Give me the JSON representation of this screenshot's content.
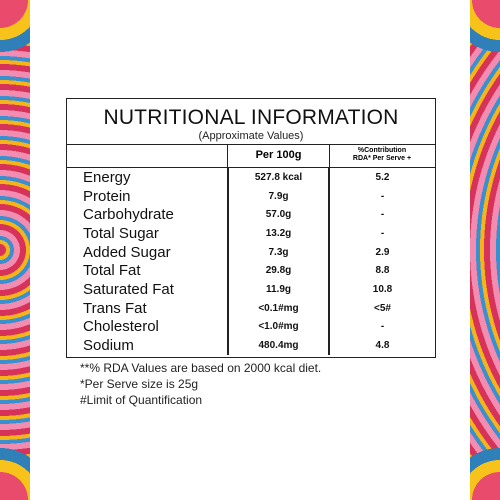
{
  "table": {
    "title": "NUTRITIONAL INFORMATION",
    "subtitle": "(Approximate Values)",
    "col_per100": "Per 100g",
    "col_rda_line1": "%Contribution",
    "col_rda_line2": "RDA* Per Serve +",
    "rows": [
      {
        "name": "Energy",
        "per100": "527.8 kcal",
        "rda": "5.2"
      },
      {
        "name": "Protein",
        "per100": "7.9g",
        "rda": "-"
      },
      {
        "name": "Carbohydrate",
        "per100": "57.0g",
        "rda": "-"
      },
      {
        "name": "Total Sugar",
        "per100": "13.2g",
        "rda": "-"
      },
      {
        "name": "Added Sugar",
        "per100": "7.3g",
        "rda": "2.9"
      },
      {
        "name": "Total Fat",
        "per100": "29.8g",
        "rda": "8.8"
      },
      {
        "name": "Saturated Fat",
        "per100": "11.9g",
        "rda": "10.8"
      },
      {
        "name": "Trans Fat",
        "per100": "<0.1#mg",
        "rda": "<5#"
      },
      {
        "name": "Cholesterol",
        "per100": "<1.0#mg",
        "rda": "-"
      },
      {
        "name": "Sodium",
        "per100": "480.4mg",
        "rda": "4.8"
      }
    ]
  },
  "notes": [
    "**% RDA Values are based on 2000 kcal diet.",
    "*Per Serve size is 25g",
    "#Limit of Quantification"
  ]
}
